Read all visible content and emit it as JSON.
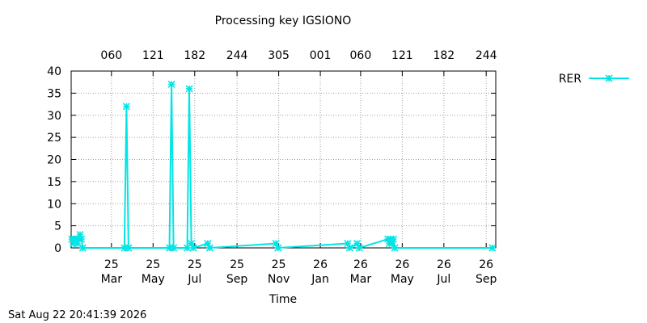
{
  "chart_data": {
    "type": "line",
    "title": "Processing key IGSIONO",
    "xlabel": "Time",
    "ylabel": "",
    "ylim": [
      0,
      40
    ],
    "yticks": [
      "0",
      "5",
      "10",
      "15",
      "20",
      "25",
      "30",
      "35",
      "40"
    ],
    "x_range": [
      "2025-01-01",
      "2026-09-15"
    ],
    "x_bottom_ticks": [
      {
        "date": "2025-03-01",
        "year": "25",
        "month": "Mar"
      },
      {
        "date": "2025-05-01",
        "year": "25",
        "month": "May"
      },
      {
        "date": "2025-07-01",
        "year": "25",
        "month": "Jul"
      },
      {
        "date": "2025-09-01",
        "year": "25",
        "month": "Sep"
      },
      {
        "date": "2025-11-01",
        "year": "25",
        "month": "Nov"
      },
      {
        "date": "2026-01-01",
        "year": "26",
        "month": "Jan"
      },
      {
        "date": "2026-03-01",
        "year": "26",
        "month": "Mar"
      },
      {
        "date": "2026-05-01",
        "year": "26",
        "month": "May"
      },
      {
        "date": "2026-07-01",
        "year": "26",
        "month": "Jul"
      },
      {
        "date": "2026-09-01",
        "year": "26",
        "month": "Sep"
      }
    ],
    "x_top_ticks": [
      {
        "date": "2025-03-01",
        "label": "060"
      },
      {
        "date": "2025-05-01",
        "label": "121"
      },
      {
        "date": "2025-07-01",
        "label": "182"
      },
      {
        "date": "2025-09-01",
        "label": "244"
      },
      {
        "date": "2025-11-01",
        "label": "305"
      },
      {
        "date": "2026-01-01",
        "label": "001"
      },
      {
        "date": "2026-03-01",
        "label": "060"
      },
      {
        "date": "2026-05-01",
        "label": "121"
      },
      {
        "date": "2026-07-01",
        "label": "182"
      },
      {
        "date": "2026-09-01",
        "label": "244"
      }
    ],
    "grid": true,
    "legend": "right",
    "series": [
      {
        "name": "RER",
        "color": "#00e5e5",
        "marker": "star",
        "points": [
          {
            "date": "2025-01-02",
            "y": 2
          },
          {
            "date": "2025-01-04",
            "y": 1
          },
          {
            "date": "2025-01-06",
            "y": 2
          },
          {
            "date": "2025-01-08",
            "y": 2
          },
          {
            "date": "2025-01-10",
            "y": 1
          },
          {
            "date": "2025-01-12",
            "y": 2
          },
          {
            "date": "2025-01-14",
            "y": 3
          },
          {
            "date": "2025-01-16",
            "y": 2
          },
          {
            "date": "2025-01-18",
            "y": 0
          },
          {
            "date": "2025-03-20",
            "y": 0
          },
          {
            "date": "2025-03-23",
            "y": 32
          },
          {
            "date": "2025-03-26",
            "y": 0
          },
          {
            "date": "2025-05-25",
            "y": 0
          },
          {
            "date": "2025-05-28",
            "y": 37
          },
          {
            "date": "2025-05-31",
            "y": 0
          },
          {
            "date": "2025-06-20",
            "y": 0
          },
          {
            "date": "2025-06-23",
            "y": 36
          },
          {
            "date": "2025-06-26",
            "y": 1
          },
          {
            "date": "2025-06-29",
            "y": 0
          },
          {
            "date": "2025-07-20",
            "y": 1
          },
          {
            "date": "2025-07-23",
            "y": 0
          },
          {
            "date": "2025-10-28",
            "y": 1
          },
          {
            "date": "2025-10-31",
            "y": 0
          },
          {
            "date": "2026-02-10",
            "y": 1
          },
          {
            "date": "2026-02-13",
            "y": 0
          },
          {
            "date": "2026-02-24",
            "y": 1
          },
          {
            "date": "2026-02-27",
            "y": 0
          },
          {
            "date": "2026-04-10",
            "y": 2
          },
          {
            "date": "2026-04-12",
            "y": 1
          },
          {
            "date": "2026-04-14",
            "y": 2
          },
          {
            "date": "2026-04-16",
            "y": 1
          },
          {
            "date": "2026-04-18",
            "y": 2
          },
          {
            "date": "2026-04-20",
            "y": 0
          },
          {
            "date": "2026-09-10",
            "y": 0
          }
        ]
      }
    ]
  },
  "footer": {
    "timestamp": "Sat Aug 22 20:41:39 2026"
  }
}
